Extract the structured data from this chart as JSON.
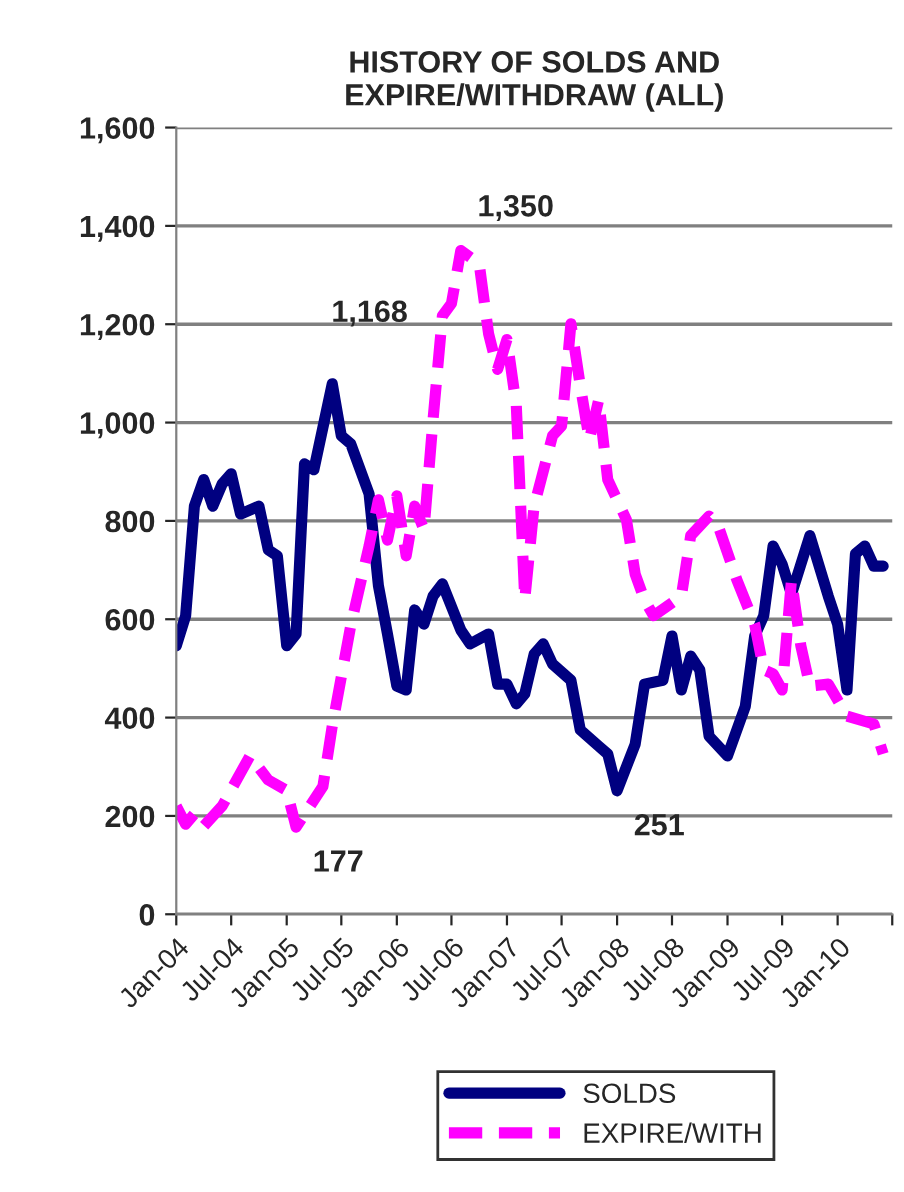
{
  "chart_data": {
    "type": "line",
    "title": "HISTORY OF SOLDS AND\nEXPIRE/WITHDRAW (ALL)",
    "xlim": [
      "2004-01",
      "2010-07"
    ],
    "xticks": [
      {
        "value": "2004-01",
        "label": "Jan-04"
      },
      {
        "value": "2004-07",
        "label": "Jul-04"
      },
      {
        "value": "2005-01",
        "label": "Jan-05"
      },
      {
        "value": "2005-07",
        "label": "Jul-05"
      },
      {
        "value": "2006-01",
        "label": "Jan-06"
      },
      {
        "value": "2006-07",
        "label": "Jul-06"
      },
      {
        "value": "2007-01",
        "label": "Jan-07"
      },
      {
        "value": "2007-07",
        "label": "Jul-07"
      },
      {
        "value": "2008-01",
        "label": "Jan-08"
      },
      {
        "value": "2008-07",
        "label": "Jul-08"
      },
      {
        "value": "2009-01",
        "label": "Jan-09"
      },
      {
        "value": "2009-07",
        "label": "Jul-09"
      },
      {
        "value": "2010-01",
        "label": "Jan-10"
      },
      {
        "value": "2010-07",
        "label": null
      }
    ],
    "ylim": [
      0,
      1600
    ],
    "yticks": [
      0,
      {
        "value": 200,
        "label": "200"
      },
      {
        "value": 400,
        "label": "400"
      },
      {
        "value": 600,
        "label": "600"
      },
      {
        "value": 800,
        "label": "800"
      },
      {
        "value": 1000,
        "label": "1,000"
      },
      {
        "value": 1200,
        "label": "1,200"
      },
      {
        "value": 1400,
        "label": "1,400"
      },
      {
        "value": 1600,
        "label": "1,600"
      }
    ],
    "grid": "y",
    "legend": "bottom",
    "marker": "none",
    "series": [
      {
        "name": "SOLDS",
        "color": "#000080",
        "line_style": "solid",
        "x": [
          "2004-01",
          "2004-02",
          "2004-03",
          "2004-04",
          "2004-05",
          "2004-06",
          "2004-07",
          "2004-08",
          "2004-10",
          "2004-11",
          "2004-12",
          "2005-01",
          "2005-02",
          "2005-03",
          "2005-04",
          "2005-06",
          "2005-07",
          "2005-08",
          "2005-10",
          "2005-11",
          "2005-12",
          "2006-01",
          "2006-02",
          "2006-03",
          "2006-04",
          "2006-05",
          "2006-06",
          "2006-08",
          "2006-09",
          "2006-11",
          "2006-12",
          "2007-01",
          "2007-02",
          "2007-03",
          "2007-04",
          "2007-05",
          "2007-06",
          "2007-08",
          "2007-09",
          "2007-11",
          "2007-12",
          "2008-01",
          "2008-03",
          "2008-04",
          "2008-06",
          "2008-07",
          "2008-08",
          "2008-09",
          "2008-10",
          "2008-11",
          "2009-01",
          "2009-03",
          "2009-04",
          "2009-05",
          "2009-06",
          "2009-07",
          "2009-08",
          "2009-10",
          "2009-12",
          "2010-01",
          "2010-02",
          "2010-03",
          "2010-04",
          "2010-05",
          "2010-06"
        ],
        "values": [
          546,
          607,
          830,
          884,
          830,
          875,
          896,
          814,
          830,
          741,
          729,
          546,
          570,
          916,
          904,
          1079,
          973,
          957,
          855,
          668,
          570,
          464,
          456,
          619,
          590,
          647,
          672,
          578,
          550,
          570,
          468,
          468,
          428,
          448,
          529,
          550,
          509,
          476,
          375,
          342,
          326,
          251,
          346,
          468,
          476,
          566,
          456,
          525,
          497,
          362,
          322,
          423,
          566,
          607,
          749,
          712,
          651,
          770,
          647,
          590,
          456,
          733,
          749,
          708,
          708
        ]
      },
      {
        "name": "EXPIRE/WITH",
        "color": "#ff00ff",
        "line_style": "dashed",
        "x": [
          "2004-01",
          "2004-02",
          "2004-03",
          "2004-04",
          "2004-06",
          "2004-09",
          "2004-11",
          "2005-01",
          "2005-02",
          "2005-05",
          "2005-06",
          "2005-08",
          "2005-10",
          "2005-11",
          "2005-12",
          "2006-01",
          "2006-02",
          "2006-03",
          "2006-04",
          "2006-05",
          "2006-06",
          "2006-07",
          "2006-08",
          "2006-10",
          "2006-11",
          "2006-12",
          "2007-01",
          "2007-02",
          "2007-03",
          "2007-04",
          "2007-06",
          "2007-07",
          "2007-08",
          "2007-09",
          "2007-10",
          "2007-11",
          "2007-12",
          "2008-02",
          "2008-03",
          "2008-04",
          "2008-05",
          "2008-08",
          "2008-09",
          "2008-11",
          "2008-12",
          "2009-02",
          "2009-04",
          "2009-05",
          "2009-06",
          "2009-07",
          "2009-08",
          "2009-09",
          "2009-10",
          "2009-12",
          "2010-02",
          "2010-05",
          "2010-06"
        ],
        "values": [
          220,
          183,
          204,
          179,
          220,
          322,
          273,
          252,
          177,
          260,
          383,
          586,
          749,
          843,
          761,
          851,
          729,
          830,
          782,
          1006,
          1217,
          1242,
          1350,
          1323,
          1181,
          1108,
          1169,
          1034,
          640,
          830,
          973,
          993,
          1201,
          1075,
          965,
          1046,
          884,
          802,
          692,
          639,
          607,
          647,
          770,
          810,
          790,
          680,
          590,
          497,
          489,
          456,
          680,
          546,
          464,
          468,
          403,
          387,
          326
        ]
      }
    ],
    "annotations": [
      "1,168",
      {
        "text": "1,350",
        "x": "2006-08",
        "y": 1350
      },
      {
        "text": "251",
        "x": "2008-01",
        "y": 251
      },
      {
        "text": "177",
        "x": "2005-02",
        "y": 177
      }
    ]
  }
}
